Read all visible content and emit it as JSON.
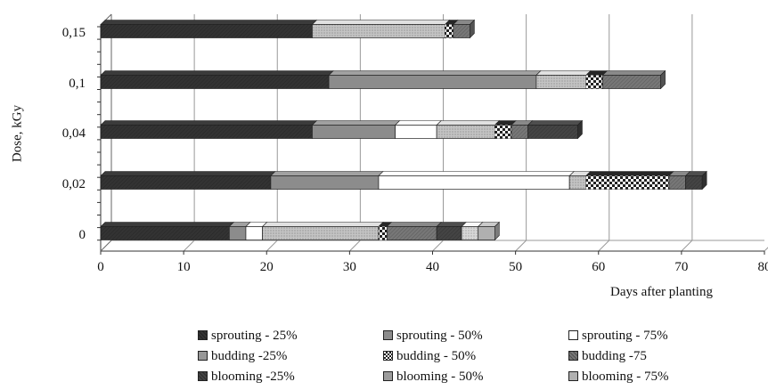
{
  "chart_data": {
    "type": "bar",
    "orientation": "horizontal",
    "stacked": true,
    "style": "3d",
    "xlabel": "Days after planting",
    "ylabel": "Dose,  kGy",
    "xlim": [
      0,
      80
    ],
    "xticks": [
      "0",
      "10",
      "20",
      "30",
      "40",
      "50",
      "60",
      "70",
      "80"
    ],
    "categories": [
      "0",
      "0,02",
      "0,04",
      "0,1",
      "0,15"
    ],
    "grid": "vertical",
    "legend_position": "bottom",
    "series": [
      {
        "name": "sprouting - 25%",
        "color": "#333333",
        "pattern": "hatch",
        "values": [
          15.5,
          20.5,
          25.5,
          27.5,
          25.5
        ]
      },
      {
        "name": "sprouting - 50%",
        "color": "#8c8c8c",
        "pattern": "solid",
        "values": [
          2,
          13,
          10,
          25,
          0
        ]
      },
      {
        "name": "sprouting - 75%",
        "color": "#ffffff",
        "pattern": "solid",
        "values": [
          2,
          23,
          5,
          0,
          0
        ]
      },
      {
        "name": "budding -25%",
        "color": "#c4c4c4",
        "pattern": "dotted",
        "values": [
          14,
          2,
          7,
          6,
          16
        ]
      },
      {
        "name": "budding - 50%",
        "color": "#222222",
        "pattern": "checker",
        "values": [
          1,
          10,
          2,
          2,
          1
        ]
      },
      {
        "name": "budding -75",
        "color": "#777777",
        "pattern": "hatch",
        "values": [
          6,
          2,
          2,
          7,
          2
        ]
      },
      {
        "name": "blooming -25%",
        "color": "#444444",
        "pattern": "hatch",
        "values": [
          3,
          2,
          6,
          0,
          0
        ]
      },
      {
        "name": "blooming - 50%",
        "color": "#d8d8d8",
        "pattern": "dotted",
        "values": [
          2,
          0,
          0,
          0,
          0
        ]
      },
      {
        "name": "blooming - 75%",
        "color": "#b0b0b0",
        "pattern": "solid",
        "values": [
          2,
          0,
          0,
          0,
          0
        ]
      }
    ]
  }
}
